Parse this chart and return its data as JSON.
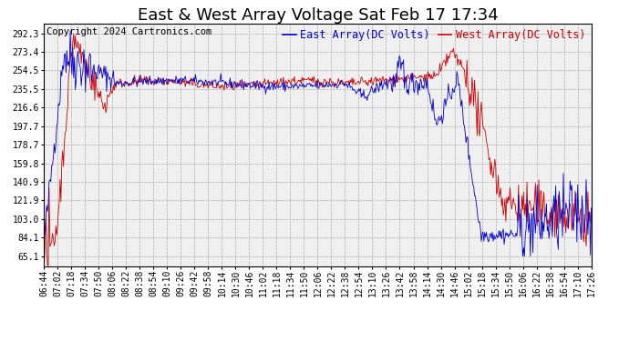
{
  "title": "East & West Array Voltage Sat Feb 17 17:34",
  "copyright": "Copyright 2024 Cartronics.com",
  "east_label": "East Array(DC Volts)",
  "west_label": "West Array(DC Volts)",
  "east_color": "#0000cc",
  "west_color": "#cc0000",
  "bg_color": "#ffffff",
  "plot_bg_color": "#f0f0f0",
  "grid_color": "#aaaaaa",
  "yticks": [
    65.1,
    84.1,
    103.0,
    121.9,
    140.9,
    159.8,
    178.7,
    197.7,
    216.6,
    235.5,
    254.5,
    273.4,
    292.3
  ],
  "ymin": 55.0,
  "ymax": 302.0,
  "xtick_labels": [
    "06:44",
    "07:02",
    "07:18",
    "07:34",
    "07:50",
    "08:06",
    "08:22",
    "08:38",
    "08:54",
    "09:10",
    "09:26",
    "09:42",
    "09:58",
    "10:14",
    "10:30",
    "10:46",
    "11:02",
    "11:18",
    "11:34",
    "11:50",
    "12:06",
    "12:22",
    "12:38",
    "12:54",
    "13:10",
    "13:26",
    "13:42",
    "13:58",
    "14:14",
    "14:30",
    "14:46",
    "15:02",
    "15:18",
    "15:34",
    "15:50",
    "16:06",
    "16:22",
    "16:38",
    "16:54",
    "17:10",
    "17:26"
  ],
  "title_fontsize": 13,
  "legend_fontsize": 8.5,
  "tick_fontsize": 7,
  "copyright_fontsize": 7.5,
  "n_points": 648
}
